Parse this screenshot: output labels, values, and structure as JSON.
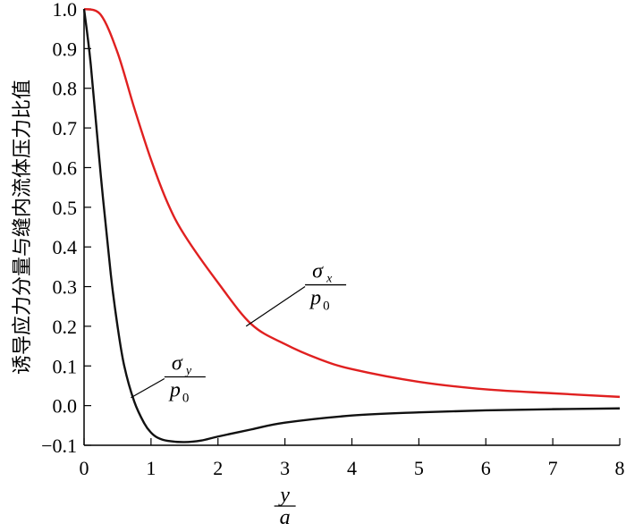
{
  "chart_data": {
    "type": "line",
    "ylabel": "诱导应力分量与缝内流体压力比值",
    "xlabel": {
      "numerator": "y",
      "denominator": "a"
    },
    "xlim": [
      0,
      8
    ],
    "ylim": [
      -0.1,
      1.0
    ],
    "xticks": [
      0,
      1,
      2,
      3,
      4,
      5,
      6,
      7,
      8
    ],
    "xtick_labels": [
      "0",
      "1",
      "2",
      "3",
      "4",
      "5",
      "6",
      "7",
      "8"
    ],
    "yticks": [
      -0.1,
      0.0,
      0.1,
      0.2,
      0.3,
      0.4,
      0.5,
      0.6,
      0.7,
      0.8,
      0.9,
      1.0
    ],
    "ytick_labels": [
      "−0.1",
      "0.0",
      "0.1",
      "0.2",
      "0.3",
      "0.4",
      "0.5",
      "0.6",
      "0.7",
      "0.8",
      "0.9",
      "1.0"
    ],
    "grid": false,
    "series": [
      {
        "label_symbol": "σ",
        "label_subscript": "x",
        "label_denominator": "p",
        "label_denominator_subscript": "0",
        "color": "#e02020",
        "x": [
          0,
          0.25,
          0.5,
          0.75,
          1.0,
          1.25,
          1.5,
          2.0,
          2.5,
          3.0,
          3.5,
          4.0,
          5.0,
          6.0,
          7.0,
          8.0
        ],
        "y": [
          1.0,
          0.985,
          0.89,
          0.75,
          0.62,
          0.51,
          0.43,
          0.31,
          0.205,
          0.155,
          0.118,
          0.092,
          0.06,
          0.041,
          0.031,
          0.022
        ]
      },
      {
        "label_symbol": "σ",
        "label_subscript": "y",
        "label_denominator": "p",
        "label_denominator_subscript": "0",
        "color": "#111111",
        "x": [
          0,
          0.1,
          0.25,
          0.4,
          0.5,
          0.6,
          0.75,
          0.9,
          1.0,
          1.1,
          1.25,
          1.5,
          1.75,
          2.0,
          2.5,
          3.0,
          4.0,
          5.0,
          6.0,
          7.0,
          8.0
        ],
        "y": [
          1.0,
          0.86,
          0.58,
          0.33,
          0.2,
          0.1,
          0.01,
          -0.045,
          -0.068,
          -0.081,
          -0.089,
          -0.092,
          -0.088,
          -0.078,
          -0.06,
          -0.043,
          -0.025,
          -0.017,
          -0.012,
          -0.009,
          -0.007
        ]
      }
    ],
    "annotations": [
      {
        "series": 0,
        "leader_from": [
          2.42,
          0.2
        ],
        "leader_to": [
          3.3,
          0.3
        ]
      },
      {
        "series": 1,
        "leader_from": [
          0.7,
          0.02
        ],
        "leader_to": [
          1.2,
          0.068
        ]
      }
    ]
  }
}
